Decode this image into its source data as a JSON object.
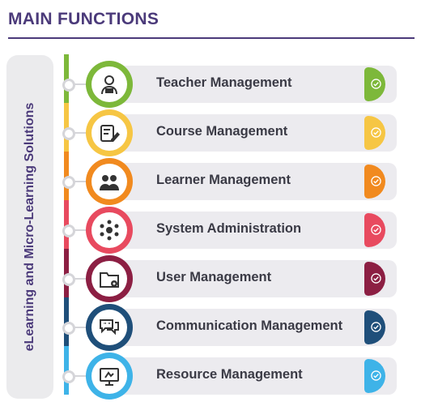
{
  "header": {
    "title": "MAIN FUNCTIONS"
  },
  "sidebar": {
    "label": "eLearning and Micro-Learning Solutions"
  },
  "functions": [
    {
      "label": "Teacher Management",
      "color": "#7db83a",
      "icon": "teacher-icon"
    },
    {
      "label": "Course Management",
      "color": "#f6c644",
      "icon": "course-edit-icon"
    },
    {
      "label": "Learner Management",
      "color": "#f18a1f",
      "icon": "learners-icon"
    },
    {
      "label": "System Administration",
      "color": "#e84a5f",
      "icon": "network-admin-icon"
    },
    {
      "label": "User Management",
      "color": "#8c1f43",
      "icon": "user-folder-icon"
    },
    {
      "label": "Communication Management",
      "color": "#1f4f7a",
      "icon": "chat-bubbles-icon"
    },
    {
      "label": "Resource Management",
      "color": "#3eb3e8",
      "icon": "resource-screen-icon"
    }
  ]
}
